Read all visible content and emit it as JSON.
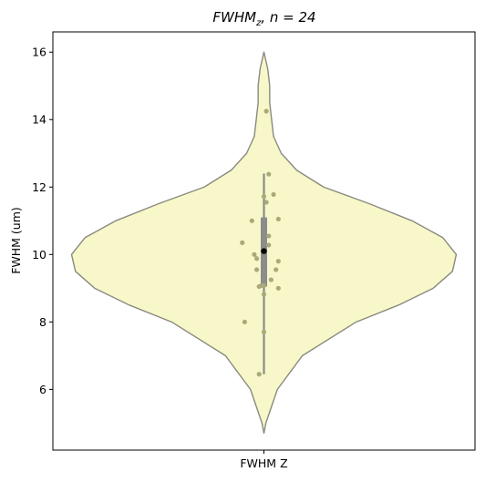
{
  "chart_data": {
    "type": "violin",
    "title_main": "FWHM",
    "title_sub": "z",
    "title_rest": ", n = 24",
    "ylabel": "FWHM (um)",
    "categories": [
      "FWHM Z"
    ],
    "ylim": [
      4.2,
      16.6
    ],
    "yticks": [
      6,
      8,
      10,
      12,
      14,
      16
    ],
    "ytick_labels": [
      "6",
      "8",
      "10",
      "12",
      "14",
      "16"
    ],
    "grid": false,
    "colors": {
      "violin_fill": "#f7f7c9",
      "violin_stroke": "#8a8a80",
      "box": "#8c8c8c",
      "median": "#000000",
      "points": "#a9a97a"
    },
    "violin_profile": [
      [
        4.7,
        0.0
      ],
      [
        5.0,
        0.01
      ],
      [
        6.0,
        0.07
      ],
      [
        7.0,
        0.2
      ],
      [
        8.0,
        0.48
      ],
      [
        8.5,
        0.7
      ],
      [
        9.0,
        0.88
      ],
      [
        9.5,
        0.98
      ],
      [
        10.0,
        1.0
      ],
      [
        10.5,
        0.93
      ],
      [
        11.0,
        0.77
      ],
      [
        11.5,
        0.55
      ],
      [
        12.0,
        0.31
      ],
      [
        12.5,
        0.17
      ],
      [
        13.0,
        0.09
      ],
      [
        13.5,
        0.05
      ],
      [
        14.0,
        0.04
      ],
      [
        14.5,
        0.03
      ],
      [
        15.0,
        0.03
      ],
      [
        15.5,
        0.02
      ],
      [
        16.0,
        0.0
      ]
    ],
    "box": {
      "min": 6.45,
      "q1": 9.05,
      "median": 10.1,
      "q3": 11.1,
      "max": 12.4
    },
    "points": [
      [
        0.01,
        14.25
      ],
      [
        0.02,
        12.38
      ],
      [
        0.04,
        11.78
      ],
      [
        0.0,
        11.72
      ],
      [
        0.01,
        11.55
      ],
      [
        0.06,
        11.05
      ],
      [
        -0.05,
        11.0
      ],
      [
        -0.09,
        10.35
      ],
      [
        0.02,
        10.55
      ],
      [
        0.02,
        10.28
      ],
      [
        -0.04,
        10.0
      ],
      [
        -0.03,
        9.88
      ],
      [
        0.06,
        9.8
      ],
      [
        0.05,
        9.55
      ],
      [
        -0.03,
        9.55
      ],
      [
        0.03,
        9.25
      ],
      [
        -0.01,
        9.08
      ],
      [
        0.0,
        9.08
      ],
      [
        -0.02,
        9.05
      ],
      [
        0.06,
        9.0
      ],
      [
        0.0,
        8.82
      ],
      [
        -0.08,
        8.0
      ],
      [
        0.0,
        7.7
      ],
      [
        -0.02,
        6.45
      ]
    ]
  }
}
